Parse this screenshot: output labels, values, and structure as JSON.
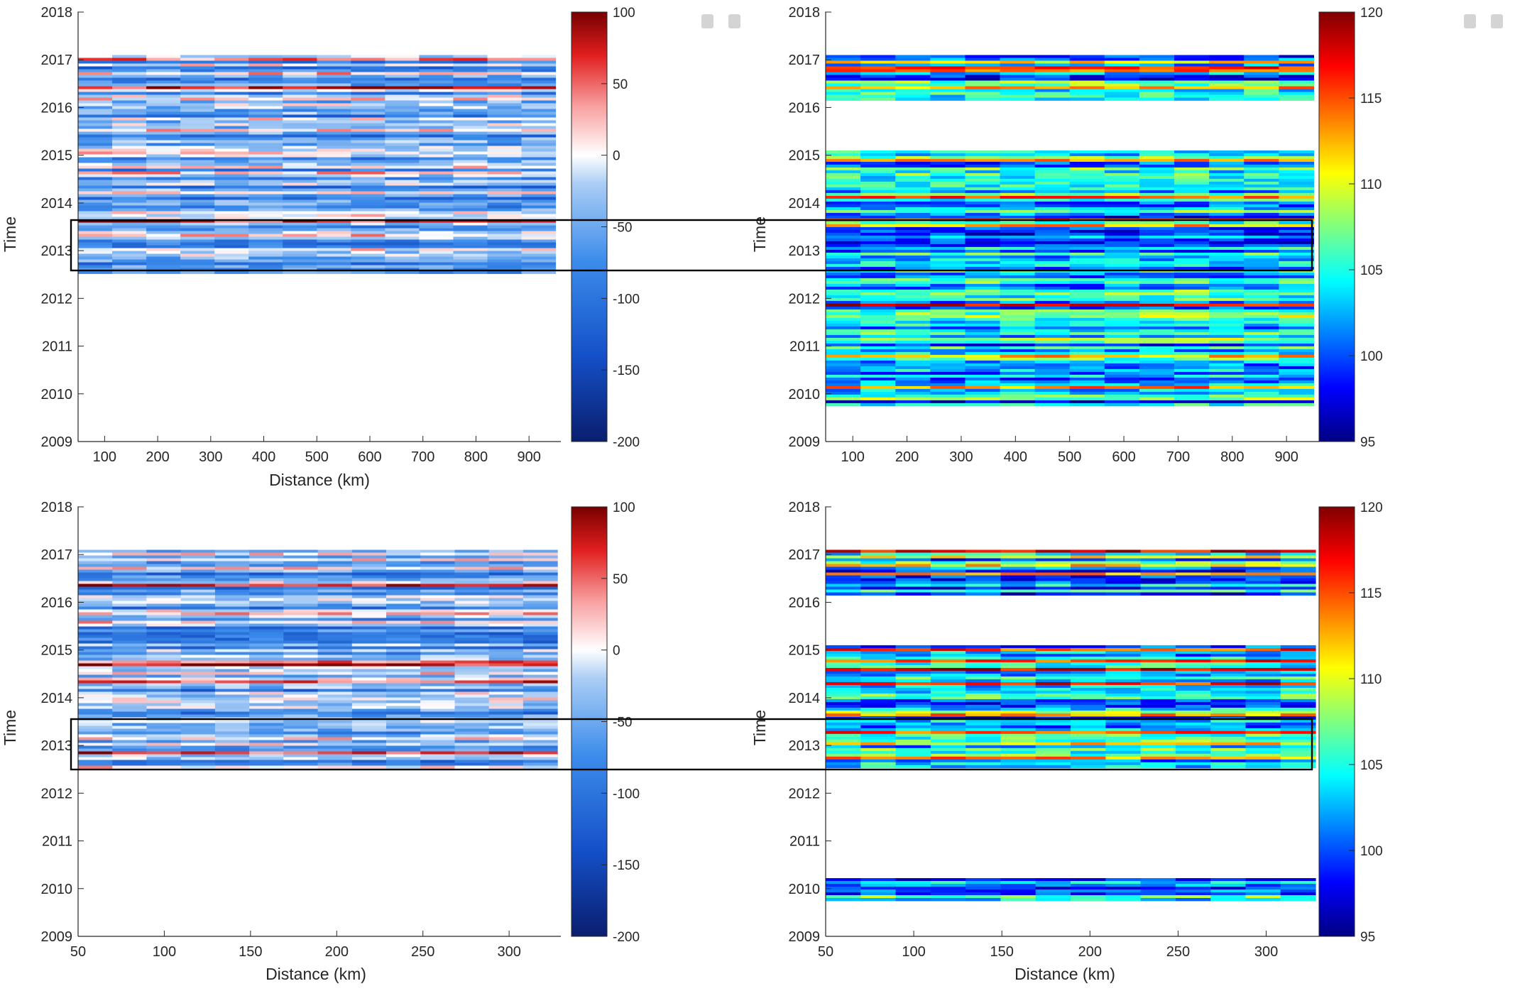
{
  "window_controls": [
    "minimize-button",
    "maximize-button"
  ],
  "chart_data": [
    {
      "type": "heatmap",
      "title": "",
      "xlabel": "Distance (km)",
      "ylabel": "Time",
      "xlim": [
        50,
        960
      ],
      "ylim": [
        2009,
        2018
      ],
      "xticks": [
        "100",
        "200",
        "300",
        "400",
        "500",
        "600",
        "700",
        "800",
        "900"
      ],
      "yticks": [
        "2009",
        "2010",
        "2011",
        "2012",
        "2013",
        "2014",
        "2015",
        "2016",
        "2017",
        "2018"
      ],
      "colormap": "blue-white-red",
      "clim": [
        -200,
        100
      ],
      "colorbar_ticks": [
        "-200",
        "-150",
        "-100",
        "-50",
        "0",
        "50",
        "100"
      ],
      "data_x_range": [
        50,
        950
      ],
      "data_time_spans": [
        [
          2012.55,
          2017.1
        ]
      ],
      "highlight_box": [
        2012.55,
        2013.6
      ]
    },
    {
      "type": "heatmap",
      "title": "",
      "xlabel": "",
      "ylabel": "Time",
      "xlim": [
        50,
        960
      ],
      "ylim": [
        2009,
        2018
      ],
      "xticks": [
        "100",
        "200",
        "300",
        "400",
        "500",
        "600",
        "700",
        "800",
        "900"
      ],
      "yticks": [
        "2009",
        "2010",
        "2011",
        "2012",
        "2013",
        "2014",
        "2015",
        "2016",
        "2017",
        "2018"
      ],
      "colormap": "jet",
      "clim": [
        95,
        120
      ],
      "colorbar_ticks": [
        "95",
        "100",
        "105",
        "110",
        "115",
        "120"
      ],
      "data_x_range": [
        50,
        950
      ],
      "data_time_spans": [
        [
          2016.2,
          2017.1
        ],
        [
          2009.8,
          2015.1
        ]
      ],
      "highlight_box": [
        2012.55,
        2013.6
      ]
    },
    {
      "type": "heatmap",
      "title": "",
      "xlabel": "Distance (km)",
      "ylabel": "Time",
      "xlim": [
        50,
        330
      ],
      "ylim": [
        2009,
        2018
      ],
      "xticks": [
        "50",
        "100",
        "150",
        "200",
        "250",
        "300"
      ],
      "yticks": [
        "2009",
        "2010",
        "2011",
        "2012",
        "2013",
        "2014",
        "2015",
        "2016",
        "2017",
        "2018"
      ],
      "colormap": "blue-white-red",
      "clim": [
        -200,
        100
      ],
      "colorbar_ticks": [
        "-200",
        "-150",
        "-100",
        "-50",
        "0",
        "50",
        "100"
      ],
      "data_x_range": [
        50,
        328
      ],
      "data_time_spans": [
        [
          2012.55,
          2017.1
        ]
      ],
      "highlight_box": [
        2012.55,
        2013.6
      ]
    },
    {
      "type": "heatmap",
      "title": "",
      "xlabel": "Distance (km)",
      "ylabel": "Time",
      "xlim": [
        50,
        330
      ],
      "ylim": [
        2009,
        2018
      ],
      "xticks": [
        "50",
        "100",
        "150",
        "200",
        "250",
        "300"
      ],
      "yticks": [
        "2009",
        "2010",
        "2011",
        "2012",
        "2013",
        "2014",
        "2015",
        "2016",
        "2017",
        "2018"
      ],
      "colormap": "jet",
      "clim": [
        95,
        120
      ],
      "colorbar_ticks": [
        "95",
        "100",
        "105",
        "110",
        "115",
        "120"
      ],
      "data_x_range": [
        50,
        328
      ],
      "data_time_spans": [
        [
          2016.2,
          2017.1
        ],
        [
          2013.6,
          2015.1
        ],
        [
          2012.55,
          2013.6
        ],
        [
          2009.8,
          2010.22
        ]
      ],
      "highlight_box": [
        2012.55,
        2013.6
      ]
    }
  ]
}
